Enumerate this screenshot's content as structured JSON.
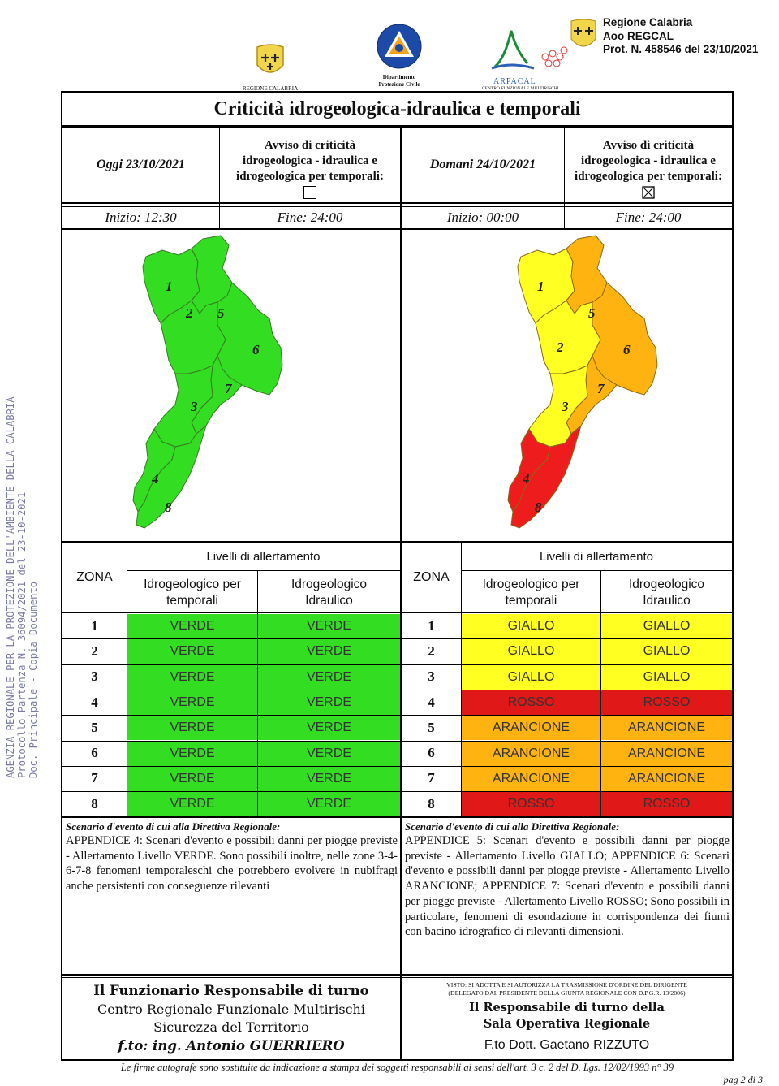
{
  "header": {
    "logo1_caption": "REGIONE CALABRIA",
    "logo2_caption_line1": "Dipartimento",
    "logo2_caption_line2": "Protezione Civile",
    "logo3_name": "ARPACAL",
    "logo3_caption": "CENTRO FUNZIONALE MULTIRISCHI",
    "stamp_line1": "Regione Calabria",
    "stamp_line2": "Aoo REGCAL",
    "stamp_line3": "Prot. N. 458546 del 23/10/2021"
  },
  "side_stamp": {
    "line1": "AGENZIA REGIONALE PER LA PROTEZIONE DELL'AMBIENTE DELLA CALABRIA",
    "line2": "Protocollo Partenza N. 36094/2021 del 23-10-2021",
    "line3": "Doc. Principale - Copia Documento"
  },
  "title": "Criticità idrogeologica-idraulica e temporali",
  "today": {
    "date": "Oggi 23/10/2021",
    "avviso_line1": "Avviso di criticità",
    "avviso_line2": "idrogeologica - idraulica e",
    "avviso_line3": "idrogeologica per temporali:",
    "avviso_checked": false,
    "inizio": "Inizio: 12:30",
    "fine": "Fine: 24:00",
    "livelli_header": "Livelli di allertamento",
    "zona_header": "ZONA",
    "col1_line1": "Idrogeologico per",
    "col1_line2": "temporali",
    "col2_line1": "Idrogeologico",
    "col2_line2": "Idraulico",
    "rows": [
      {
        "zona": "1",
        "temporali": "VERDE",
        "idraulico": "VERDE"
      },
      {
        "zona": "2",
        "temporali": "VERDE",
        "idraulico": "VERDE"
      },
      {
        "zona": "3",
        "temporali": "VERDE",
        "idraulico": "VERDE"
      },
      {
        "zona": "4",
        "temporali": "VERDE",
        "idraulico": "VERDE"
      },
      {
        "zona": "5",
        "temporali": "VERDE",
        "idraulico": "VERDE"
      },
      {
        "zona": "6",
        "temporali": "VERDE",
        "idraulico": "VERDE"
      },
      {
        "zona": "7",
        "temporali": "VERDE",
        "idraulico": "VERDE"
      },
      {
        "zona": "8",
        "temporali": "VERDE",
        "idraulico": "VERDE"
      }
    ],
    "map_zone_colors": {
      "1": "#33dd22",
      "2": "#33dd22",
      "3": "#33dd22",
      "4": "#33dd22",
      "5": "#33dd22",
      "6": "#33dd22",
      "7": "#33dd22",
      "8": "#33dd22"
    },
    "scenario_title": "Scenario d'evento di cui alla Direttiva Regionale:",
    "scenario_text": "APPENDICE 4: Scenari d'evento e possibili danni per piogge previste - Allertamento Livello VERDE. Sono possibili inoltre, nelle zone 3-4-6-7-8 fenomeni temporaleschi che potrebbero evolvere in nubifragi anche persistenti con conseguenze rilevanti"
  },
  "tomorrow": {
    "date": "Domani 24/10/2021",
    "avviso_line1": "Avviso di criticità",
    "avviso_line2": "idrogeologica - idraulica e",
    "avviso_line3": "idrogeologica per temporali:",
    "avviso_checked": true,
    "inizio": "Inizio: 00:00",
    "fine": "Fine: 24:00",
    "livelli_header": "Livelli di allertamento",
    "zona_header": "ZONA",
    "col1_line1": "Idrogeologico per",
    "col1_line2": "temporali",
    "col2_line1": "Idrogeologico",
    "col2_line2": "Idraulico",
    "rows": [
      {
        "zona": "1",
        "temporali": "GIALLO",
        "idraulico": "GIALLO"
      },
      {
        "zona": "2",
        "temporali": "GIALLO",
        "idraulico": "GIALLO"
      },
      {
        "zona": "3",
        "temporali": "GIALLO",
        "idraulico": "GIALLO"
      },
      {
        "zona": "4",
        "temporali": "ROSSO",
        "idraulico": "ROSSO"
      },
      {
        "zona": "5",
        "temporali": "ARANCIONE",
        "idraulico": "ARANCIONE"
      },
      {
        "zona": "6",
        "temporali": "ARANCIONE",
        "idraulico": "ARANCIONE"
      },
      {
        "zona": "7",
        "temporali": "ARANCIONE",
        "idraulico": "ARANCIONE"
      },
      {
        "zona": "8",
        "temporali": "ROSSO",
        "idraulico": "ROSSO"
      }
    ],
    "map_zone_colors": {
      "1": "#ffff22",
      "2": "#ffff22",
      "3": "#ffff22",
      "4": "#ee1c1c",
      "5": "#ffb310",
      "6": "#ffb310",
      "7": "#ffb310",
      "8": "#ee1c1c"
    },
    "scenario_title": "Scenario d'evento di cui alla Direttiva Regionale:",
    "scenario_text": "APPENDICE 5: Scenari d'evento e possibili danni per piogge previste - Allertamento Livello GIALLO; APPENDICE 6: Scenari d'evento e possibili danni per piogge previste - Allertamento Livello ARANCIONE; APPENDICE 7: Scenari d'evento e possibili danni per piogge previste - Allertamento Livello ROSSO; Sono possibili in particolare, fenomeni di esondazione in corrispondenza dei fiumi con bacino idrografico di rilevanti dimensioni."
  },
  "level_colors": {
    "VERDE": "#33dd22",
    "GIALLO": "#ffff22",
    "ARANCIONE": "#ffb310",
    "ROSSO": "#e01818"
  },
  "footer": {
    "left_line1": "Il Funzionario Responsabile di turno",
    "left_line2": "Centro Regionale Funzionale Multirischi",
    "left_line3": "Sicurezza del Territorio",
    "left_line4": "f.to: ing. Antonio GUERRIERO",
    "right_small1": "VISTO: SI ADOTTA E SI AUTORIZZA LA TRASMISSIONE D'ORDINE DEL DIRIGENTE",
    "right_small2": "(DELEGATO DAL PRESIDENTE DELLA GIUNTA REGIONALE CON D.P.G.R. 13/2006)",
    "right_line1": "Il Responsabile di turno della",
    "right_line2": "Sala Operativa Regionale",
    "right_line3": "F.to Dott. Gaetano RIZZUTO",
    "note": "Le firme autografe sono sostituite da indicazione a stampa dei soggetti responsabili ai sensi dell'art. 3 c. 2 del D. Lgs. 12/02/1993 n° 39",
    "page": "pag 2 di 3"
  }
}
